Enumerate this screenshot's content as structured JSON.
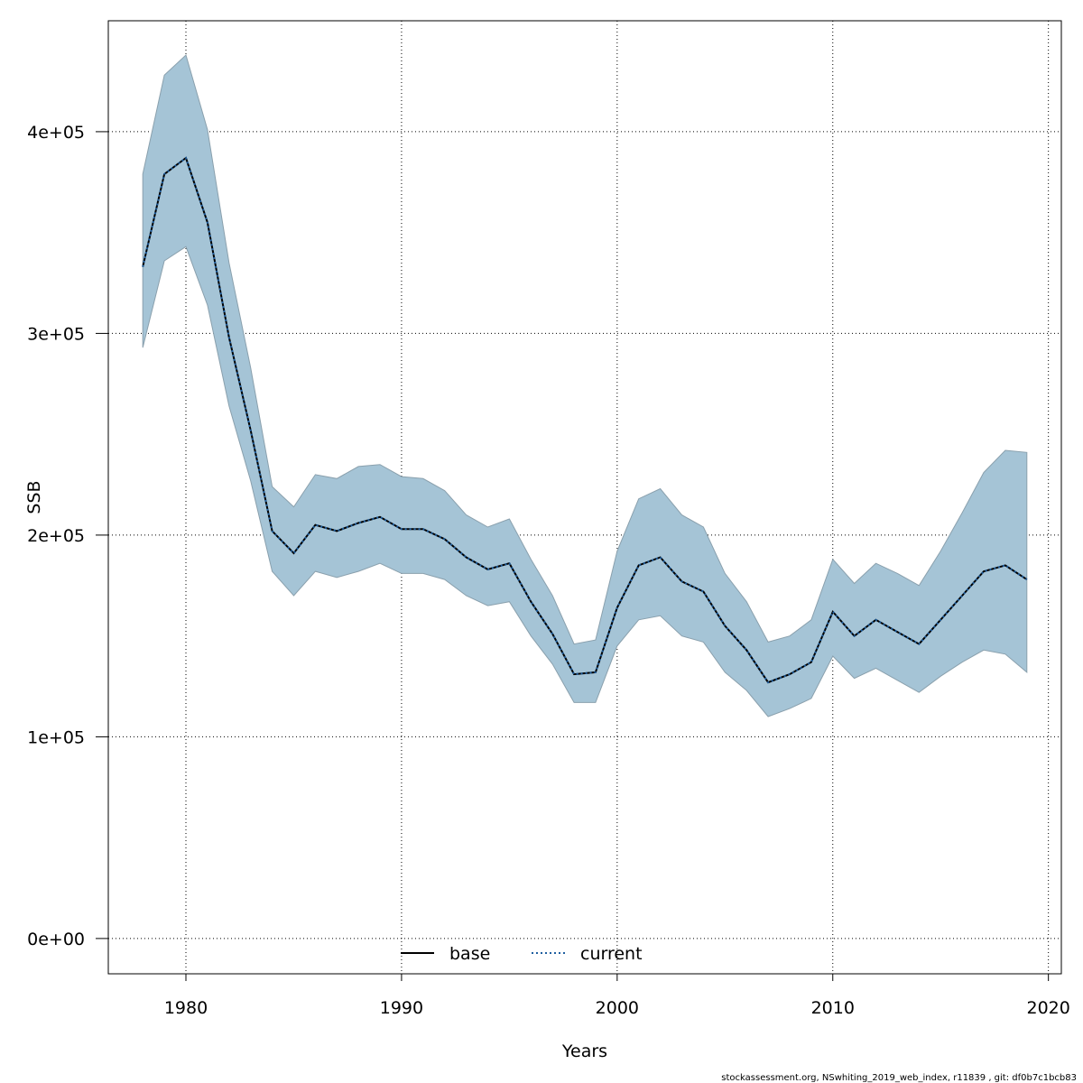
{
  "chart_data": {
    "type": "line",
    "title": "",
    "xlabel": "Years",
    "ylabel": "SSB",
    "xlim": [
      1976.4,
      2020.6
    ],
    "ylim": [
      -17500,
      455000
    ],
    "x_ticks": [
      1980,
      1990,
      2000,
      2010,
      2020
    ],
    "x_tick_labels": [
      "1980",
      "1990",
      "2000",
      "2010",
      "2020"
    ],
    "y_ticks": [
      0,
      100000,
      200000,
      300000,
      400000
    ],
    "y_tick_labels": [
      "0e+00",
      "1e+05",
      "2e+05",
      "3e+05",
      "4e+05"
    ],
    "grid": true,
    "legend_position": "bottom",
    "legend": [
      {
        "label": "base",
        "style": "solid",
        "color": "#000000"
      },
      {
        "label": "current",
        "style": "dotted",
        "color": "#1f5fa0"
      }
    ],
    "x": [
      1978,
      1979,
      1980,
      1981,
      1982,
      1983,
      1984,
      1985,
      1986,
      1987,
      1988,
      1989,
      1990,
      1991,
      1992,
      1993,
      1994,
      1995,
      1996,
      1997,
      1998,
      1999,
      2000,
      2001,
      2002,
      2003,
      2004,
      2005,
      2006,
      2007,
      2008,
      2009,
      2010,
      2011,
      2012,
      2013,
      2014,
      2015,
      2016,
      2017,
      2018,
      2019
    ],
    "series": [
      {
        "name": "current",
        "values": [
          333000,
          379000,
          387000,
          355000,
          298000,
          252000,
          202000,
          191000,
          205000,
          202000,
          206000,
          209000,
          203000,
          203000,
          198000,
          189000,
          183000,
          186000,
          167000,
          151000,
          131000,
          132000,
          164000,
          185000,
          189000,
          177000,
          172000,
          155000,
          143000,
          127000,
          131000,
          137000,
          162000,
          150000,
          158000,
          152000,
          146000,
          158000,
          170000,
          182000,
          185000,
          178000
        ],
        "lower": [
          293000,
          336000,
          343000,
          314000,
          264000,
          227000,
          182000,
          170000,
          182000,
          179000,
          182000,
          186000,
          181000,
          181000,
          178000,
          170000,
          165000,
          167000,
          150000,
          136000,
          117000,
          117000,
          145000,
          158000,
          160000,
          150000,
          147000,
          132000,
          123000,
          110000,
          114000,
          119000,
          140000,
          129000,
          134000,
          128000,
          122000,
          130000,
          137000,
          143000,
          141000,
          132000
        ],
        "upper": [
          379000,
          428000,
          438000,
          401000,
          335000,
          283000,
          224000,
          214000,
          230000,
          228000,
          234000,
          235000,
          229000,
          228000,
          222000,
          210000,
          204000,
          208000,
          188000,
          170000,
          146000,
          148000,
          192000,
          218000,
          223000,
          210000,
          204000,
          181000,
          167000,
          147000,
          150000,
          158000,
          188000,
          176000,
          186000,
          181000,
          175000,
          192000,
          211000,
          231000,
          242000,
          241000
        ]
      }
    ]
  },
  "colors": {
    "band_fill": "#a5c4d6",
    "band_stroke": "#8aa0ad",
    "current_line": "#1f5fa0",
    "base_line": "#000000",
    "grid": "#000000",
    "frame": "#000000"
  },
  "footer": "stockassessment.org, NSwhiting_2019_web_index, r11839 , git: df0b7c1bcb83"
}
